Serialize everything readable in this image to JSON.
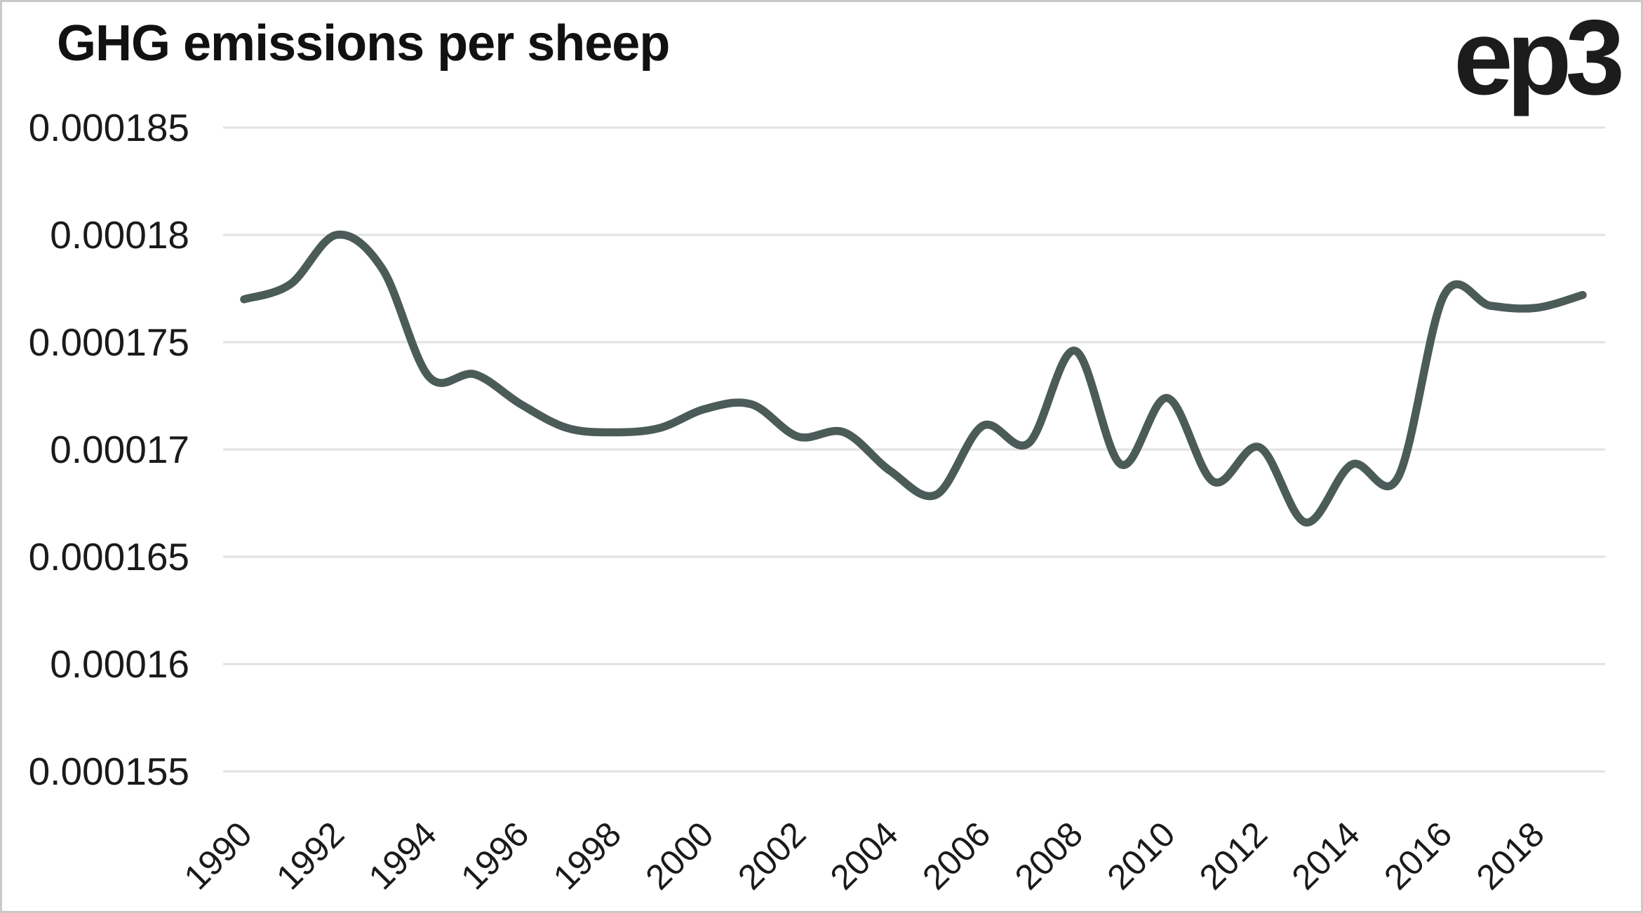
{
  "header": {
    "title": "GHG emissions per sheep",
    "logo_text": "ep3"
  },
  "chart_data": {
    "type": "line",
    "title": "GHG emissions per sheep",
    "x": [
      1990,
      1991,
      1992,
      1993,
      1994,
      1995,
      1996,
      1997,
      1998,
      1999,
      2000,
      2001,
      2002,
      2003,
      2004,
      2005,
      2006,
      2007,
      2008,
      2009,
      2010,
      2011,
      2012,
      2013,
      2014,
      2015,
      2016,
      2017,
      2018,
      2019
    ],
    "series": [
      {
        "name": "GHG emissions per sheep",
        "values": [
          0.000177,
          0.0001777,
          0.00018,
          0.0001784,
          0.0001734,
          0.0001735,
          0.0001721,
          0.000171,
          0.0001708,
          0.000171,
          0.0001719,
          0.0001721,
          0.0001706,
          0.0001708,
          0.000169,
          0.0001679,
          0.0001711,
          0.0001703,
          0.0001746,
          0.0001693,
          0.0001724,
          0.0001685,
          0.0001701,
          0.0001666,
          0.0001693,
          0.0001687,
          0.0001772,
          0.0001767,
          0.0001766,
          0.0001772
        ]
      }
    ],
    "x_tick_labels": [
      "1990",
      "1992",
      "1994",
      "1996",
      "1998",
      "2000",
      "2002",
      "2004",
      "2006",
      "2008",
      "2010",
      "2012",
      "2014",
      "2016",
      "2018"
    ],
    "y_ticks": [
      {
        "label": "0.000185",
        "value": 0.000185
      },
      {
        "label": "0.00018",
        "value": 0.00018
      },
      {
        "label": "0.000175",
        "value": 0.000175
      },
      {
        "label": "0.00017",
        "value": 0.00017
      },
      {
        "label": "0.000165",
        "value": 0.000165
      },
      {
        "label": "0.00016",
        "value": 0.00016
      },
      {
        "label": "0.000155",
        "value": 0.000155
      }
    ],
    "xlim": [
      1990,
      2019
    ],
    "ylim": [
      0.000155,
      0.000185
    ],
    "grid": "horizontal",
    "legend": "none",
    "colors": {
      "line": "#4b5b58",
      "grid": "#e2e2e2",
      "tick_text": "#1a1a1a",
      "title_text": "#111111",
      "background": "#ffffff",
      "frame_border": "#c9c9c9"
    }
  }
}
